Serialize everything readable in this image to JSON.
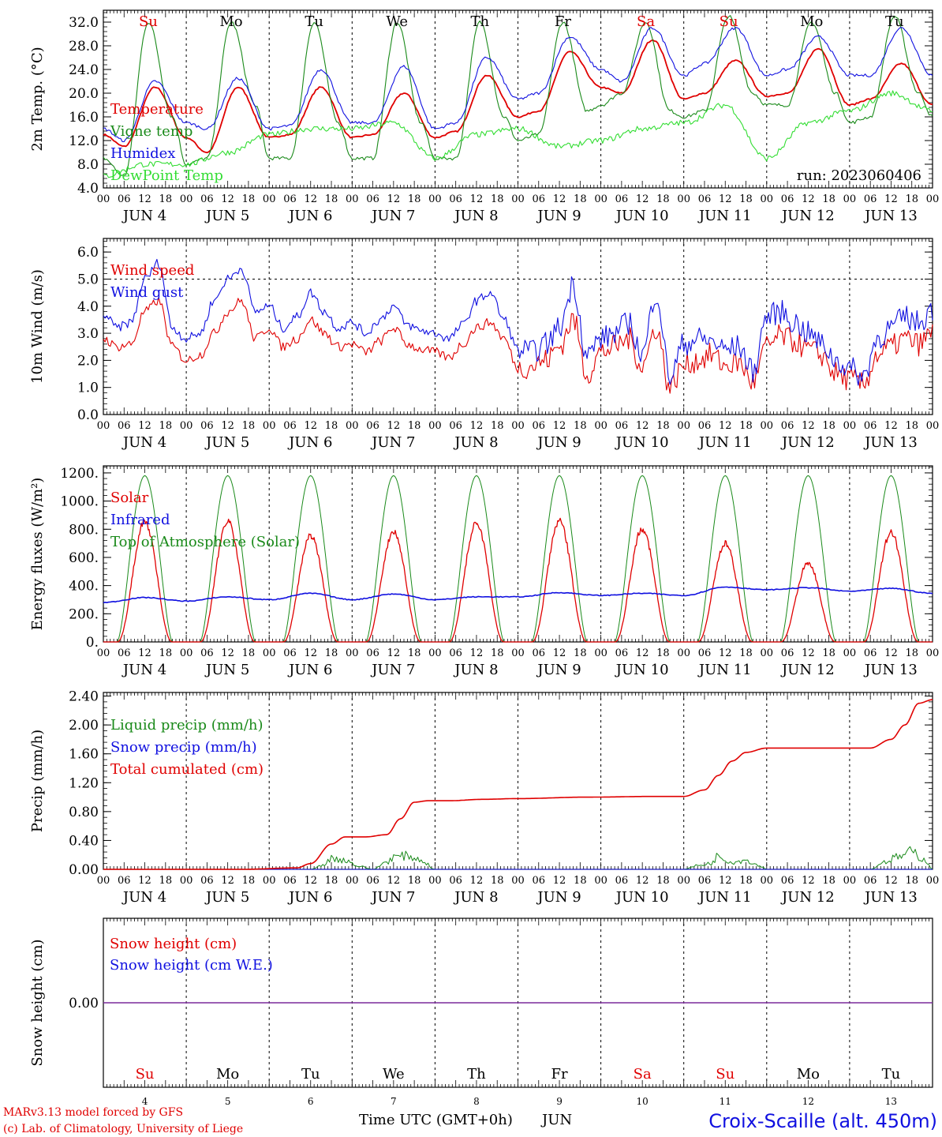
{
  "colors": {
    "red": "#e00000",
    "blue": "#1010e0",
    "green": "#1a8a1a",
    "lightgreen": "#33dd33",
    "purple": "#7a2a9a",
    "axis": "#000000"
  },
  "x_axis": {
    "hour_labels": [
      "00",
      "06",
      "12",
      "18"
    ],
    "days": [
      "4",
      "5",
      "6",
      "7",
      "8",
      "9",
      "10",
      "11",
      "12",
      "13"
    ],
    "month": "JUN",
    "weekdays": [
      "Su",
      "Mo",
      "Tu",
      "We",
      "Th",
      "Fr",
      "Sa",
      "Su",
      "Mo",
      "Tu"
    ],
    "weekday_colors": [
      "red",
      "black",
      "black",
      "black",
      "black",
      "black",
      "red",
      "red",
      "black",
      "black"
    ],
    "final_hour_label": "00",
    "title": "Time UTC (GMT+0h)",
    "title_month": "JUN"
  },
  "run_label": "run: 2023060406",
  "footer": {
    "model_line": "MARv3.13 model forced by GFS",
    "copyright_line": "(c) Lab. of Climatology, University of Liege",
    "station": "Croix-Scaille (alt. 450m)"
  },
  "chart_data": [
    {
      "type": "line",
      "ylabel": "2m Temp. (°C)",
      "ylim": [
        4,
        34
      ],
      "yticks": [
        "4.0",
        "8.0",
        "12.0",
        "16.0",
        "20.0",
        "24.0",
        "28.0",
        "32.0"
      ],
      "x_unit": "hours from JUN 4 00 UTC",
      "grid": "vertical dashed at day boundaries",
      "legend_placement": "left",
      "series": [
        {
          "name": "Temperature",
          "color": "red",
          "x": [
            0,
            6,
            15,
            24,
            30,
            39,
            48,
            54,
            63,
            72,
            78,
            87,
            96,
            102,
            111,
            120,
            126,
            135,
            144,
            150,
            159,
            168,
            174,
            183,
            192,
            198,
            207,
            216,
            222,
            231,
            240
          ],
          "y": [
            13,
            11,
            21,
            12.5,
            10,
            21,
            12.5,
            13,
            21,
            12.5,
            13,
            20,
            12.5,
            13.5,
            23,
            16,
            17,
            27,
            21,
            20,
            29,
            19,
            20,
            25.5,
            19.5,
            20,
            27.5,
            18,
            19,
            25,
            18
          ]
        },
        {
          "name": "Vigne temp",
          "color": "green",
          "x": [
            0,
            6,
            13,
            20,
            24,
            30,
            37,
            44,
            48,
            54,
            61,
            68,
            72,
            78,
            85,
            92,
            96,
            102,
            109,
            116,
            120,
            126,
            133,
            140,
            144,
            150,
            157,
            164,
            168,
            174,
            181,
            188,
            192,
            198,
            205,
            212,
            216,
            222,
            229,
            236,
            240
          ],
          "y": [
            9,
            6,
            32,
            16,
            8,
            9,
            32,
            18,
            9,
            9,
            32,
            15,
            9,
            9,
            32,
            15,
            9,
            9,
            32,
            16,
            12,
            13,
            32,
            17,
            18,
            20,
            32,
            17,
            16,
            17,
            33,
            20,
            18,
            18,
            32,
            20,
            15,
            16,
            33,
            20,
            16
          ]
        },
        {
          "name": "Humidex",
          "color": "blue",
          "x": [
            0,
            6,
            15,
            24,
            30,
            39,
            48,
            54,
            63,
            72,
            78,
            87,
            96,
            102,
            111,
            120,
            126,
            135,
            144,
            150,
            159,
            168,
            174,
            183,
            192,
            198,
            207,
            216,
            222,
            231,
            240
          ],
          "y": [
            14,
            12,
            22,
            15,
            14,
            22.5,
            14,
            14.5,
            24,
            15,
            15,
            24.5,
            14,
            15,
            26,
            19,
            20,
            29.5,
            24,
            22,
            31,
            23,
            25,
            31,
            23,
            24,
            29.5,
            23,
            23,
            31,
            23
          ]
        },
        {
          "name": "DewPoint Temp",
          "color": "lightgreen",
          "x": [
            0,
            12,
            24,
            36,
            48,
            60,
            72,
            84,
            96,
            108,
            120,
            132,
            144,
            156,
            168,
            180,
            192,
            204,
            216,
            228,
            240
          ],
          "y": [
            6,
            8,
            8,
            10,
            13,
            14,
            14,
            15,
            9,
            13,
            14,
            11,
            12,
            14,
            15,
            18,
            9,
            15,
            17,
            20,
            17
          ]
        }
      ]
    },
    {
      "type": "line",
      "ylabel": "10m Wind (m/s)",
      "ylim": [
        0,
        6.5
      ],
      "yticks": [
        "0.0",
        "1.0",
        "2.0",
        "3.0",
        "4.0",
        "5.0",
        "6.0"
      ],
      "reference_line": 5.0,
      "x_unit": "hours from JUN 4 00 UTC",
      "series": [
        {
          "name": "Wind speed",
          "color": "red",
          "x": [
            0,
            4,
            8,
            12,
            16,
            20,
            24,
            28,
            32,
            36,
            40,
            44,
            48,
            52,
            56,
            60,
            64,
            68,
            72,
            76,
            80,
            84,
            88,
            92,
            96,
            100,
            104,
            108,
            112,
            116,
            120,
            124,
            128,
            132,
            136,
            140,
            144,
            148,
            152,
            156,
            160,
            164,
            168,
            172,
            176,
            180,
            184,
            188,
            192,
            196,
            200,
            204,
            208,
            212,
            216,
            220,
            224,
            228,
            232,
            236,
            240
          ],
          "y": [
            2.8,
            2.5,
            2.6,
            3.8,
            4.2,
            2.5,
            2.0,
            2.2,
            3.0,
            3.8,
            4.2,
            2.8,
            3.2,
            2.5,
            2.8,
            3.5,
            3.0,
            2.5,
            2.6,
            2.3,
            2.7,
            3.2,
            2.6,
            2.4,
            2.3,
            2.1,
            2.6,
            3.2,
            3.4,
            2.8,
            1.7,
            1.8,
            2.0,
            2.5,
            3.5,
            1.5,
            2.3,
            2.5,
            2.8,
            1.8,
            3.2,
            1.0,
            1.8,
            2.0,
            2.2,
            1.8,
            1.9,
            1.2,
            2.5,
            2.9,
            2.7,
            2.4,
            2.2,
            1.5,
            1.3,
            1.1,
            2.2,
            2.5,
            2.8,
            2.6,
            3.0
          ]
        },
        {
          "name": "Wind gust",
          "color": "blue",
          "x": [
            0,
            4,
            8,
            12,
            16,
            20,
            24,
            28,
            32,
            36,
            40,
            44,
            48,
            52,
            56,
            60,
            64,
            68,
            72,
            76,
            80,
            84,
            88,
            92,
            96,
            100,
            104,
            108,
            112,
            116,
            120,
            124,
            128,
            132,
            136,
            140,
            144,
            148,
            152,
            156,
            160,
            164,
            168,
            172,
            176,
            180,
            184,
            188,
            192,
            196,
            200,
            204,
            208,
            212,
            216,
            220,
            224,
            228,
            232,
            236,
            240
          ],
          "y": [
            3.7,
            3.2,
            3.4,
            5.0,
            5.6,
            3.2,
            2.8,
            3.0,
            4.2,
            5.0,
            5.4,
            3.8,
            4.0,
            3.2,
            3.6,
            4.5,
            3.8,
            3.2,
            3.4,
            3.0,
            3.5,
            4.0,
            3.3,
            3.1,
            3.0,
            2.8,
            3.3,
            4.2,
            4.5,
            3.5,
            2.4,
            2.3,
            2.6,
            3.2,
            4.8,
            2.2,
            2.8,
            3.0,
            3.4,
            2.2,
            4.5,
            1.4,
            2.6,
            2.8,
            2.7,
            2.4,
            2.5,
            1.6,
            3.6,
            3.8,
            3.4,
            3.0,
            2.6,
            2.0,
            1.7,
            1.4,
            2.8,
            3.2,
            3.6,
            3.4,
            3.9
          ]
        }
      ]
    },
    {
      "type": "line",
      "ylabel": "Energy fluxes (W/m²)",
      "ylim": [
        0,
        1250
      ],
      "yticks": [
        "0.",
        "200.",
        "400.",
        "600.",
        "800.",
        "1000.",
        "1200."
      ],
      "x_unit": "hours from JUN 4 00 UTC",
      "diurnal_window_hours": [
        4,
        20
      ],
      "series": [
        {
          "name": "Solar",
          "color": "red",
          "daily_peak": [
            880,
            890,
            780,
            810,
            870,
            880,
            830,
            720,
            580,
            800
          ]
        },
        {
          "name": "Infrared",
          "color": "blue",
          "x": [
            0,
            12,
            24,
            36,
            48,
            60,
            72,
            84,
            96,
            108,
            120,
            132,
            144,
            156,
            168,
            180,
            192,
            204,
            216,
            228,
            240
          ],
          "y": [
            280,
            315,
            290,
            320,
            300,
            345,
            300,
            340,
            300,
            320,
            320,
            350,
            330,
            345,
            330,
            390,
            370,
            385,
            360,
            380,
            345
          ]
        },
        {
          "name": "Top of Atmosphere (Solar)",
          "color": "green",
          "daily_peak": [
            1180,
            1180,
            1180,
            1180,
            1180,
            1180,
            1180,
            1180,
            1180,
            1180
          ]
        }
      ]
    },
    {
      "type": "line",
      "ylabel": "Precip (mm/h)",
      "ylim": [
        0,
        2.45
      ],
      "yticks": [
        "0.00",
        "0.40",
        "0.80",
        "1.20",
        "1.60",
        "2.00",
        "2.40"
      ],
      "x_unit": "hours from JUN 4 00 UTC",
      "series": [
        {
          "name": "Liquid precip (mm/h)",
          "color": "green",
          "x": [
            0,
            60,
            64,
            66,
            70,
            74,
            78,
            82,
            84,
            88,
            92,
            96,
            98,
            168,
            172,
            176,
            178,
            182,
            186,
            190,
            192,
            222,
            226,
            230,
            234,
            238,
            240
          ],
          "y": [
            0,
            0,
            0.08,
            0.18,
            0.15,
            0.05,
            0,
            0.12,
            0.2,
            0.22,
            0.15,
            0,
            0,
            0,
            0.06,
            0.1,
            0.22,
            0.12,
            0.15,
            0.06,
            0,
            0,
            0.12,
            0.2,
            0.28,
            0.15,
            0
          ]
        },
        {
          "name": "Snow precip (mm/h)",
          "color": "blue",
          "x": [
            0,
            240
          ],
          "y": [
            0,
            0
          ]
        },
        {
          "name": "Total cumulated (cm)",
          "color": "red",
          "x": [
            0,
            40,
            56,
            60,
            66,
            70,
            76,
            82,
            86,
            90,
            94,
            100,
            110,
            120,
            140,
            160,
            168,
            174,
            178,
            182,
            186,
            192,
            204,
            216,
            222,
            228,
            232,
            236,
            240
          ],
          "y": [
            0,
            0,
            0.02,
            0.08,
            0.35,
            0.45,
            0.45,
            0.48,
            0.7,
            0.93,
            0.95,
            0.95,
            0.97,
            0.98,
            1.0,
            1.01,
            1.01,
            1.1,
            1.3,
            1.5,
            1.62,
            1.68,
            1.68,
            1.68,
            1.68,
            1.8,
            2.0,
            2.3,
            2.35
          ]
        }
      ]
    },
    {
      "type": "line",
      "ylabel": "Snow height (cm)",
      "yticks": [
        "0.00"
      ],
      "x_unit": "hours from JUN 4 00 UTC",
      "series": [
        {
          "name": "Snow height (cm)",
          "color": "red",
          "x": [
            0,
            240
          ],
          "y": [
            0,
            0
          ]
        },
        {
          "name": "Snow height (cm W.E.)",
          "color": "blue",
          "x": [
            0,
            240
          ],
          "y": [
            0,
            0
          ]
        }
      ]
    }
  ]
}
